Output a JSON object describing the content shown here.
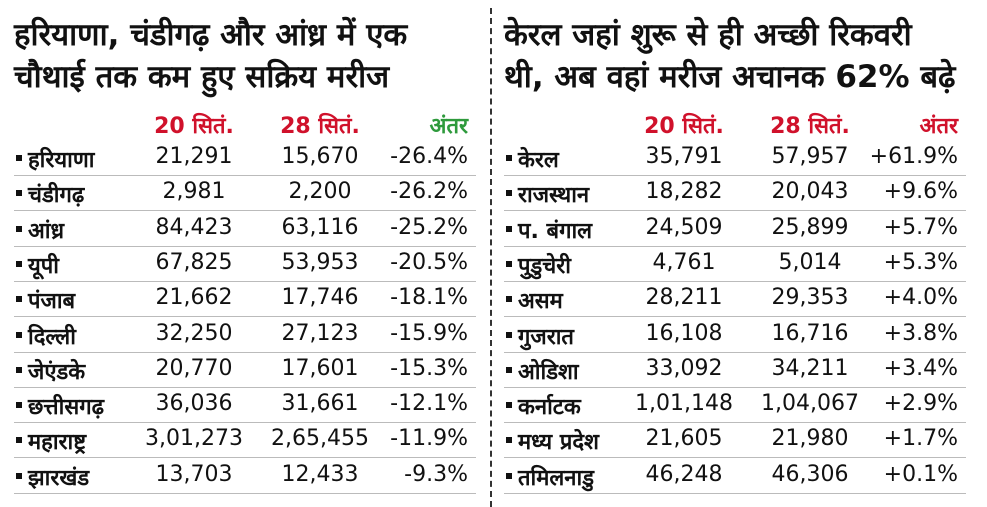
{
  "panels": [
    {
      "title": [
        "हरियाणा, चंडीगढ़ और आंध्र में एक",
        "चौथाई तक कम हुए सक्रिय मरीज"
      ],
      "headers": [
        "20 सितं.",
        "28 सितं.",
        "अंतर"
      ],
      "rows": [
        [
          "हरियाणा",
          "21,291",
          "15,670",
          "-26.4%"
        ],
        [
          "चंडीगढ़",
          "2,981",
          "2,200",
          "-26.2%"
        ],
        [
          "आंध्र",
          "84,423",
          "63,116",
          "-25.2%"
        ],
        [
          "यूपी",
          "67,825",
          "53,953",
          "-20.5%"
        ],
        [
          "पंजाब",
          "21,662",
          "17,746",
          "-18.1%"
        ],
        [
          "दिल्ली",
          "32,250",
          "27,123",
          "-15.9%"
        ],
        [
          "जेएंडके",
          "20,770",
          "17,601",
          "-15.3%"
        ],
        [
          "छत्तीसगढ़",
          "36,036",
          "31,661",
          "-12.1%"
        ],
        [
          "महाराष्ट्र",
          "3,01,273",
          "2,65,455",
          "-11.9%"
        ],
        [
          "झारखंड",
          "13,703",
          "12,433",
          "-9.3%"
        ]
      ]
    },
    {
      "title": [
        "केरल जहां शुरू से ही अच्छी रिकवरी",
        "थी, अब वहां मरीज अचानक 62% बढ़े"
      ],
      "headers": [
        "20 सितं.",
        "28 सितं.",
        "अंतर"
      ],
      "rows": [
        [
          "केरल",
          "35,791",
          "57,957",
          "+61.9%"
        ],
        [
          "राजस्थान",
          "18,282",
          "20,043",
          "+9.6%"
        ],
        [
          "प. बंगाल",
          "24,509",
          "25,899",
          "+5.7%"
        ],
        [
          "पुडुचेरी",
          "4,761",
          "5,014",
          "+5.3%"
        ],
        [
          "असम",
          "28,211",
          "29,353",
          "+4.0%"
        ],
        [
          "गुजरात",
          "16,108",
          "16,716",
          "+3.8%"
        ],
        [
          "ओडिशा",
          "33,092",
          "34,211",
          "+3.4%"
        ],
        [
          "कर्नाटक",
          "1,01,148",
          "1,04,067",
          "+2.9%"
        ],
        [
          "मध्य प्रदेश",
          "21,605",
          "21,980",
          "+1.7%"
        ],
        [
          "तमिलनाडु",
          "46,248",
          "46,306",
          "+0.1%"
        ]
      ]
    }
  ]
}
